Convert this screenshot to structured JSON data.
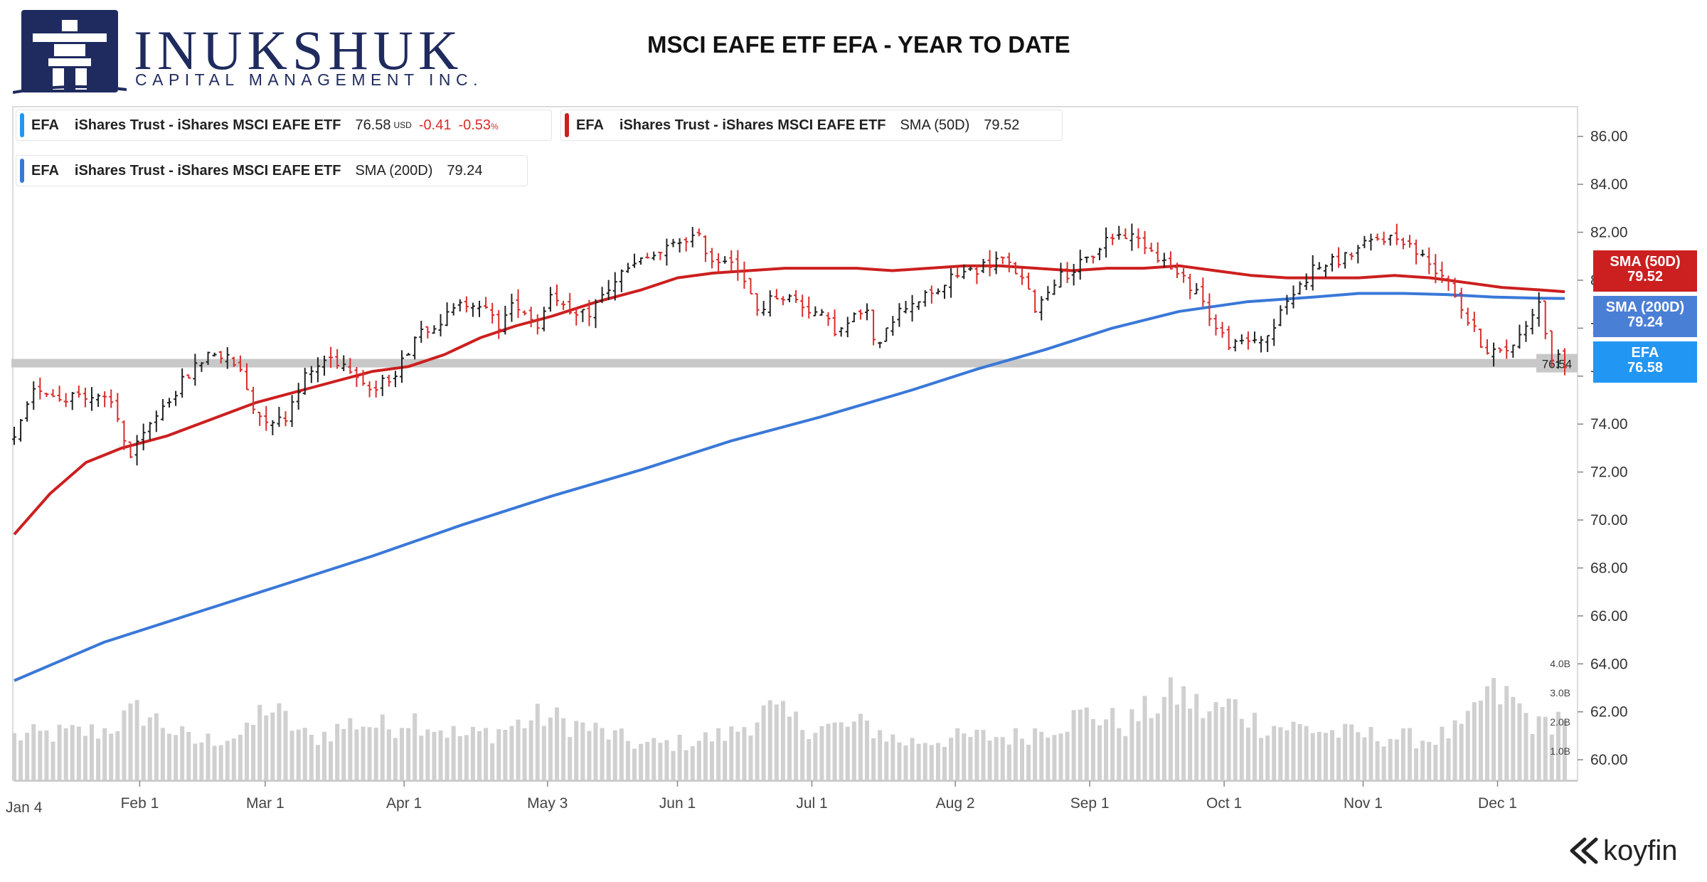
{
  "header": {
    "logo_name": "INUKSHUK",
    "logo_subtitle": "CAPITAL MANAGEMENT INC.",
    "title": "MSCI EAFE ETF EFA - YEAR TO DATE"
  },
  "legends": [
    {
      "symbol": "EFA",
      "name": "iShares Trust - iShares MSCI EAFE ETF",
      "indicator": "",
      "value": "76.58",
      "unit": "USD",
      "change": "-0.41",
      "change_pct": "-0.53",
      "pct_unit": "%",
      "color": "#2196f3"
    },
    {
      "symbol": "EFA",
      "name": "iShares Trust - iShares MSCI EAFE ETF",
      "indicator": "SMA (50D)",
      "value": "79.52",
      "color": "#cc1f1f"
    },
    {
      "symbol": "EFA",
      "name": "iShares Trust - iShares MSCI EAFE ETF",
      "indicator": "SMA (200D)",
      "value": "79.24",
      "color": "#3a78d8"
    }
  ],
  "price_tags": [
    {
      "label": "SMA (50D)",
      "value": "79.52",
      "color": "#cc1f1f"
    },
    {
      "label": "SMA (200D)",
      "value": "79.24",
      "color": "#4a7fd6"
    },
    {
      "label": "EFA",
      "value": "76.58",
      "color": "#2196f3"
    }
  ],
  "brand": "koyfin",
  "chart_data": {
    "type": "line",
    "title": "MSCI EAFE ETF EFA - YEAR TO DATE",
    "y_axis": {
      "range": [
        59.5,
        87
      ],
      "ticks": [
        60,
        62,
        64,
        66,
        68,
        70,
        72,
        74,
        76,
        78,
        80,
        82,
        84,
        86
      ],
      "tick_labels": [
        "60.00",
        "62.00",
        "64.00",
        "66.00",
        "68.00",
        "70.00",
        "72.00",
        "74.00",
        "76.00",
        "78.00",
        "80.00",
        "82.00",
        "84.00",
        "86.00"
      ],
      "side": "right"
    },
    "volume_axis": {
      "tick_labels": [
        "1.0B",
        "2.0B",
        "3.0B",
        "4.0B"
      ]
    },
    "x_axis": {
      "range_days": [
        0,
        346
      ],
      "first_label": "Jan 4",
      "ticks": [
        {
          "label": "Feb 1",
          "day": 28
        },
        {
          "label": "Mar 1",
          "day": 56
        },
        {
          "label": "Apr 1",
          "day": 87
        },
        {
          "label": "May 3",
          "day": 119
        },
        {
          "label": "Jun 1",
          "day": 148
        },
        {
          "label": "Jul 1",
          "day": 178
        },
        {
          "label": "Aug 2",
          "day": 210
        },
        {
          "label": "Sep 1",
          "day": 240
        },
        {
          "label": "Oct 1",
          "day": 270
        },
        {
          "label": "Nov 1",
          "day": 301
        },
        {
          "label": "Dec 1",
          "day": 331
        }
      ]
    },
    "horizontal_line": {
      "value": 76.54,
      "label": "76.54"
    },
    "price_path": [
      [
        0,
        73.3
      ],
      [
        5,
        75.6
      ],
      [
        10,
        75.1
      ],
      [
        15,
        75.3
      ],
      [
        22,
        74.8
      ],
      [
        26,
        72.6
      ],
      [
        32,
        74.5
      ],
      [
        40,
        76.3
      ],
      [
        44,
        77.1
      ],
      [
        50,
        76.4
      ],
      [
        54,
        74.4
      ],
      [
        60,
        74.1
      ],
      [
        64,
        75.8
      ],
      [
        70,
        76.8
      ],
      [
        76,
        76.3
      ],
      [
        80,
        75.3
      ],
      [
        86,
        76.4
      ],
      [
        90,
        77.9
      ],
      [
        96,
        78.4
      ],
      [
        100,
        79.0
      ],
      [
        103,
        79.2
      ],
      [
        108,
        78.1
      ],
      [
        112,
        79.1
      ],
      [
        117,
        78.1
      ],
      [
        120,
        79.7
      ],
      [
        124,
        78.4
      ],
      [
        128,
        78.6
      ],
      [
        135,
        80.2
      ],
      [
        140,
        80.8
      ],
      [
        145,
        81.2
      ],
      [
        150,
        81.8
      ],
      [
        153,
        81.7
      ],
      [
        156,
        80.8
      ],
      [
        160,
        81.0
      ],
      [
        163,
        79.8
      ],
      [
        166,
        78.7
      ],
      [
        170,
        79.4
      ],
      [
        174,
        79.2
      ],
      [
        180,
        78.5
      ],
      [
        184,
        77.8
      ],
      [
        190,
        78.9
      ],
      [
        192,
        77.1
      ],
      [
        195,
        78.3
      ],
      [
        200,
        79.1
      ],
      [
        205,
        79.4
      ],
      [
        210,
        80.2
      ],
      [
        215,
        80.5
      ],
      [
        220,
        80.9
      ],
      [
        224,
        80.3
      ],
      [
        228,
        78.8
      ],
      [
        232,
        80.0
      ],
      [
        236,
        80.4
      ],
      [
        240,
        80.9
      ],
      [
        244,
        81.8
      ],
      [
        248,
        81.9
      ],
      [
        252,
        81.6
      ],
      [
        256,
        80.9
      ],
      [
        260,
        80.1
      ],
      [
        264,
        79.6
      ],
      [
        268,
        78.0
      ],
      [
        272,
        77.2
      ],
      [
        276,
        77.5
      ],
      [
        280,
        77.7
      ],
      [
        284,
        79.1
      ],
      [
        290,
        80.5
      ],
      [
        295,
        80.8
      ],
      [
        300,
        81.3
      ],
      [
        305,
        81.8
      ],
      [
        310,
        81.7
      ],
      [
        315,
        80.8
      ],
      [
        320,
        80.1
      ],
      [
        324,
        78.4
      ],
      [
        328,
        77.2
      ],
      [
        332,
        76.9
      ],
      [
        336,
        77.7
      ],
      [
        340,
        79.2
      ],
      [
        343,
        76.8
      ],
      [
        346,
        76.58
      ]
    ],
    "series": [
      {
        "name": "SMA (50D)",
        "color": "#cc1f1f",
        "points": [
          [
            0,
            69.4
          ],
          [
            8,
            71.1
          ],
          [
            16,
            72.4
          ],
          [
            24,
            73.0
          ],
          [
            34,
            73.5
          ],
          [
            44,
            74.2
          ],
          [
            54,
            74.9
          ],
          [
            64,
            75.4
          ],
          [
            72,
            75.8
          ],
          [
            80,
            76.2
          ],
          [
            88,
            76.4
          ],
          [
            96,
            76.9
          ],
          [
            104,
            77.6
          ],
          [
            112,
            78.1
          ],
          [
            120,
            78.5
          ],
          [
            130,
            79.1
          ],
          [
            140,
            79.6
          ],
          [
            148,
            80.1
          ],
          [
            156,
            80.3
          ],
          [
            164,
            80.4
          ],
          [
            172,
            80.5
          ],
          [
            180,
            80.5
          ],
          [
            188,
            80.5
          ],
          [
            196,
            80.4
          ],
          [
            204,
            80.5
          ],
          [
            212,
            80.6
          ],
          [
            220,
            80.6
          ],
          [
            228,
            80.5
          ],
          [
            236,
            80.4
          ],
          [
            244,
            80.5
          ],
          [
            252,
            80.5
          ],
          [
            260,
            80.6
          ],
          [
            268,
            80.4
          ],
          [
            276,
            80.2
          ],
          [
            284,
            80.1
          ],
          [
            292,
            80.1
          ],
          [
            300,
            80.1
          ],
          [
            308,
            80.2
          ],
          [
            316,
            80.1
          ],
          [
            324,
            79.9
          ],
          [
            332,
            79.7
          ],
          [
            340,
            79.6
          ],
          [
            346,
            79.52
          ]
        ]
      },
      {
        "name": "SMA (200D)",
        "color": "#3a78d8",
        "points": [
          [
            0,
            63.3
          ],
          [
            20,
            64.9
          ],
          [
            40,
            66.1
          ],
          [
            60,
            67.3
          ],
          [
            80,
            68.5
          ],
          [
            100,
            69.8
          ],
          [
            120,
            71.0
          ],
          [
            140,
            72.1
          ],
          [
            160,
            73.3
          ],
          [
            180,
            74.3
          ],
          [
            200,
            75.4
          ],
          [
            215,
            76.3
          ],
          [
            230,
            77.1
          ],
          [
            245,
            78.0
          ],
          [
            260,
            78.7
          ],
          [
            275,
            79.1
          ],
          [
            290,
            79.3
          ],
          [
            300,
            79.45
          ],
          [
            310,
            79.45
          ],
          [
            320,
            79.4
          ],
          [
            330,
            79.3
          ],
          [
            340,
            79.25
          ],
          [
            346,
            79.24
          ]
        ]
      }
    ],
    "volume_path": [
      [
        0,
        1.5
      ],
      [
        20,
        1.7
      ],
      [
        28,
        2.4
      ],
      [
        40,
        1.3
      ],
      [
        52,
        1.6
      ],
      [
        56,
        2.6
      ],
      [
        66,
        1.4
      ],
      [
        76,
        2.0
      ],
      [
        84,
        1.8
      ],
      [
        88,
        2.2
      ],
      [
        100,
        1.5
      ],
      [
        108,
        1.7
      ],
      [
        118,
        2.2
      ],
      [
        128,
        1.8
      ],
      [
        140,
        1.2
      ],
      [
        150,
        1.3
      ],
      [
        160,
        1.6
      ],
      [
        168,
        2.4
      ],
      [
        176,
        1.9
      ],
      [
        182,
        1.8
      ],
      [
        190,
        1.9
      ],
      [
        198,
        1.3
      ],
      [
        206,
        1.4
      ],
      [
        216,
        1.5
      ],
      [
        224,
        1.5
      ],
      [
        232,
        1.9
      ],
      [
        240,
        2.3
      ],
      [
        248,
        1.9
      ],
      [
        256,
        2.7
      ],
      [
        260,
        3.0
      ],
      [
        266,
        2.3
      ],
      [
        272,
        2.6
      ],
      [
        278,
        1.9
      ],
      [
        288,
        1.8
      ],
      [
        296,
        1.6
      ],
      [
        306,
        1.5
      ],
      [
        316,
        1.4
      ],
      [
        324,
        1.8
      ],
      [
        328,
        3.0
      ],
      [
        334,
        2.8
      ],
      [
        340,
        1.8
      ],
      [
        346,
        2.3
      ]
    ]
  }
}
